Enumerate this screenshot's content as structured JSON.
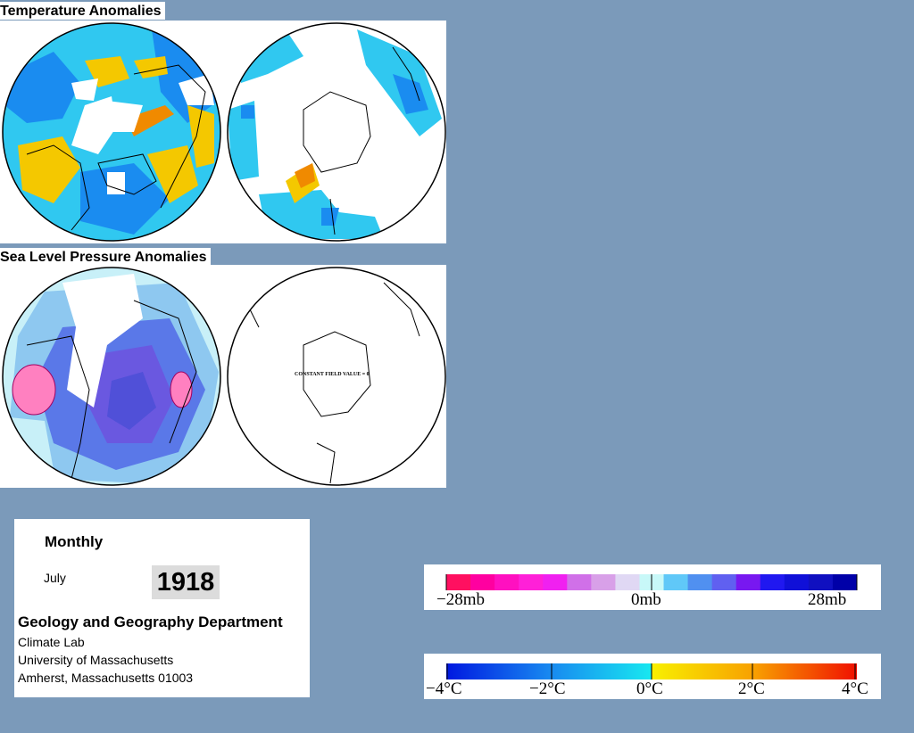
{
  "temperature_section": {
    "title": "Temperature Anomalies"
  },
  "pressure_section": {
    "title": "Sea Level Pressure Anomalies",
    "south_map_note": "CONSTANT FIELD VALUE = 0"
  },
  "info": {
    "frequency": "Monthly",
    "month": "July",
    "year": "1918",
    "department": "Geology and Geography Department",
    "lab": "Climate Lab",
    "university": "University of Massachusetts",
    "address": "Amherst, Massachusetts 01003"
  },
  "pressure_legend": {
    "labels": {
      "left": "−28mb",
      "center": "0mb",
      "right": "28mb"
    },
    "colors": [
      "#ff1060",
      "#ff00a0",
      "#ff10c0",
      "#ff20d8",
      "#f020f0",
      "#d070e8",
      "#d8a0e8",
      "#e0d8f4",
      "#c8f8f8",
      "#60c8f8",
      "#5090f0",
      "#6060f0",
      "#7818f0",
      "#2018f0",
      "#1010d8",
      "#1010c0",
      "#0000a8"
    ]
  },
  "temperature_legend": {
    "labels": {
      "m4": "−4°C",
      "m2": "−2°C",
      "zero": "0°C",
      "p2": "2°C",
      "p4": "4°C"
    }
  },
  "colors": {
    "background": "#7b9aba",
    "cold": "#1a8cf0",
    "cool": "#30c8f0",
    "warm": "#f4c800",
    "hot": "#f08a00",
    "low_pressure": "#5a78e8",
    "deep_low": "#6a58e0",
    "pale_blue": "#c8f0f8",
    "high_pressure": "#ff80c0"
  }
}
